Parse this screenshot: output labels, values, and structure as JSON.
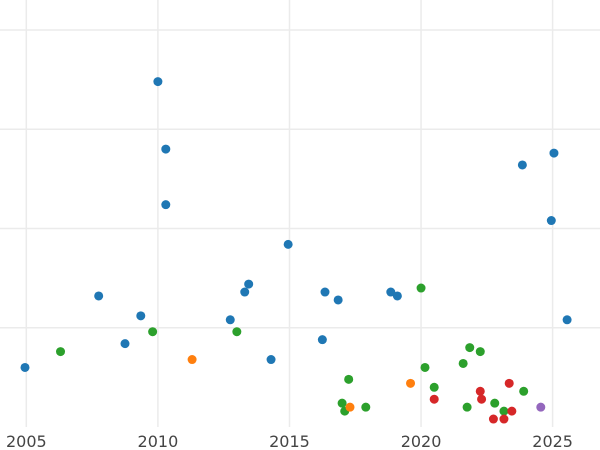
{
  "chart_data": {
    "type": "scatter",
    "title": "",
    "xlabel": "",
    "ylabel": "",
    "xlim": [
      2004.0,
      2026.8
    ],
    "ylim": [
      0,
      1
    ],
    "x_ticks": [
      2005,
      2010,
      2015,
      2020,
      2025
    ],
    "x_tick_labels": [
      "2005",
      "2010",
      "2015",
      "2020",
      "2025"
    ],
    "y_gridlines": [
      0.25,
      0.5,
      0.75,
      1.0
    ],
    "y_tick_labels_visible": false,
    "grid": true,
    "legend": "none",
    "series": [
      {
        "color": "#1f77b4",
        "points": [
          {
            "x": 2004.95,
            "y": 0.15
          },
          {
            "x": 2007.75,
            "y": 0.33
          },
          {
            "x": 2008.75,
            "y": 0.21
          },
          {
            "x": 2009.35,
            "y": 0.28
          },
          {
            "x": 2010.0,
            "y": 0.87
          },
          {
            "x": 2010.3,
            "y": 0.7
          },
          {
            "x": 2010.3,
            "y": 0.56
          },
          {
            "x": 2012.75,
            "y": 0.27
          },
          {
            "x": 2013.3,
            "y": 0.34
          },
          {
            "x": 2013.45,
            "y": 0.36
          },
          {
            "x": 2014.3,
            "y": 0.17
          },
          {
            "x": 2014.95,
            "y": 0.46
          },
          {
            "x": 2016.25,
            "y": 0.22
          },
          {
            "x": 2016.35,
            "y": 0.34
          },
          {
            "x": 2016.85,
            "y": 0.32
          },
          {
            "x": 2018.85,
            "y": 0.34
          },
          {
            "x": 2019.1,
            "y": 0.33
          },
          {
            "x": 2023.85,
            "y": 0.66
          },
          {
            "x": 2024.95,
            "y": 0.52
          },
          {
            "x": 2025.05,
            "y": 0.69
          },
          {
            "x": 2025.55,
            "y": 0.27
          }
        ]
      },
      {
        "color": "#2ca02c",
        "points": [
          {
            "x": 2006.3,
            "y": 0.19
          },
          {
            "x": 2009.8,
            "y": 0.24
          },
          {
            "x": 2013.0,
            "y": 0.24
          },
          {
            "x": 2017.0,
            "y": 0.06
          },
          {
            "x": 2017.1,
            "y": 0.04
          },
          {
            "x": 2017.25,
            "y": 0.12
          },
          {
            "x": 2017.9,
            "y": 0.05
          },
          {
            "x": 2020.0,
            "y": 0.35
          },
          {
            "x": 2020.15,
            "y": 0.15
          },
          {
            "x": 2020.5,
            "y": 0.1
          },
          {
            "x": 2021.6,
            "y": 0.16
          },
          {
            "x": 2021.75,
            "y": 0.05
          },
          {
            "x": 2021.85,
            "y": 0.2
          },
          {
            "x": 2022.25,
            "y": 0.19
          },
          {
            "x": 2022.8,
            "y": 0.06
          },
          {
            "x": 2023.15,
            "y": 0.04
          },
          {
            "x": 2023.9,
            "y": 0.09
          }
        ]
      },
      {
        "color": "#ff7f0e",
        "points": [
          {
            "x": 2011.3,
            "y": 0.17
          },
          {
            "x": 2017.3,
            "y": 0.05
          },
          {
            "x": 2019.6,
            "y": 0.11
          }
        ]
      },
      {
        "color": "#d62728",
        "points": [
          {
            "x": 2020.5,
            "y": 0.07
          },
          {
            "x": 2022.25,
            "y": 0.09
          },
          {
            "x": 2022.3,
            "y": 0.07
          },
          {
            "x": 2022.75,
            "y": 0.02
          },
          {
            "x": 2023.15,
            "y": 0.02
          },
          {
            "x": 2023.35,
            "y": 0.11
          },
          {
            "x": 2023.45,
            "y": 0.04
          }
        ]
      },
      {
        "color": "#9467bd",
        "points": [
          {
            "x": 2024.55,
            "y": 0.05
          }
        ]
      }
    ]
  }
}
